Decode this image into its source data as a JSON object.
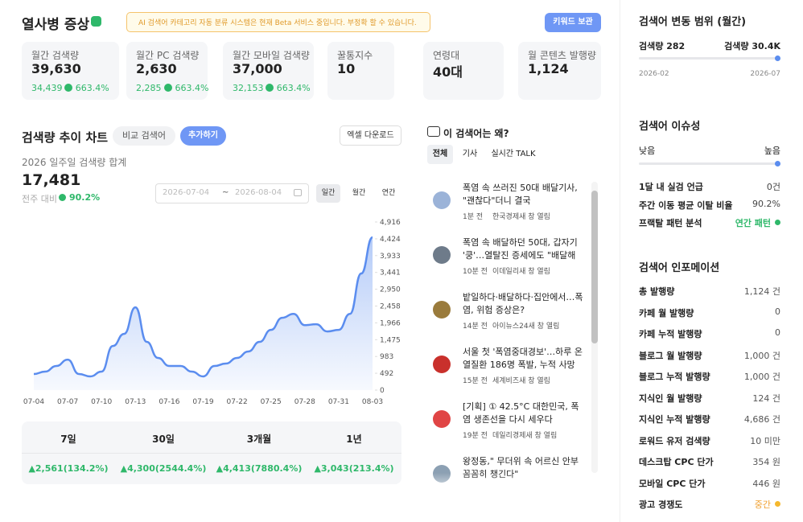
{
  "header": {
    "title": "열사병 증상",
    "notice": "AI 검색어 카테고리 자동 분류 시스템은 현재 Beta 서비스 중입니다. 부정확 할 수 있습니다.",
    "button": "키워드 보관"
  },
  "stats": [
    {
      "label": "월간 검색량",
      "value": "39,630",
      "sub": "34,439",
      "change": "663.4%"
    },
    {
      "label": "월간 PC 검색량",
      "value": "2,630",
      "sub": "2,285",
      "change": "663.4%"
    },
    {
      "label": "월간 모바일 검색량",
      "value": "37,000",
      "sub": "32,153",
      "change": "663.4%"
    },
    {
      "label": "꿀통지수",
      "value": "10"
    },
    {
      "label": "연령대",
      "value": "40대"
    },
    {
      "label": "월 콘텐츠 발행량",
      "value": "1,124"
    }
  ],
  "trend": {
    "title": "검색량 추이 차트",
    "compare_button": "비교 검색어",
    "add_button": "추가하기",
    "excel_button": "엑셀 다운로드",
    "subtitle": "2026 일주일 검색량 합계",
    "total": "17,481",
    "compare_label": "전주 대비",
    "compare_value": "90.2%",
    "date_from": "2026-07-04",
    "date_sep": "~",
    "date_to": "2026-08-04",
    "periods": [
      "일간",
      "월간",
      "연간"
    ]
  },
  "chart_data": {
    "type": "line",
    "categories": [
      "07-04",
      null,
      null,
      "07-07",
      null,
      null,
      "07-10",
      null,
      null,
      "07-13",
      null,
      null,
      "07-16",
      null,
      null,
      "07-19",
      null,
      null,
      "07-22",
      null,
      null,
      "07-25",
      null,
      null,
      "07-28",
      null,
      null,
      "07-31",
      null,
      null,
      "08-03"
    ],
    "values": [
      470,
      540,
      705,
      890,
      470,
      400,
      540,
      1290,
      1645,
      2420,
      1410,
      940,
      705,
      705,
      540,
      400,
      705,
      775,
      940,
      1130,
      1410,
      1760,
      2115,
      2230,
      1900,
      1925,
      1715,
      1760,
      2230,
      3410,
      4465
    ],
    "color": "#5b8def",
    "ylim": [
      0,
      4916
    ],
    "yticks": [
      0,
      492,
      983,
      {
        "value": 1475,
        "label": "1,475"
      },
      {
        "value": 1966,
        "label": "1,966"
      },
      {
        "value": 2458,
        "label": "2,458"
      },
      {
        "value": 2950,
        "label": "2,950"
      },
      {
        "value": 3441,
        "label": "3,441"
      },
      {
        "value": 3933,
        "label": "3,933"
      },
      {
        "value": 4424,
        "label": "4,424"
      },
      {
        "value": 4916,
        "label": "4,916"
      }
    ],
    "grid": false
  },
  "summary": {
    "headers": [
      "7일",
      "30일",
      "3개월",
      "1년"
    ],
    "values": [
      "▲2,561(134.2%)",
      "▲4,300(2544.4%)",
      "▲4,413(7880.4%)",
      "▲3,043(213.4%)"
    ]
  },
  "why": {
    "title": "이 검색어는 왜?",
    "tabs": [
      "전체",
      "기사",
      "실시간 TALK"
    ],
    "news": [
      {
        "title": "폭염 속 쓰러진 50대 배달기사, \"괜찮다\"더니 결국",
        "time": "1분 전",
        "source": "한국경제새 창 열림"
      },
      {
        "title": "폭염 속 배달하던 50대, 갑자기 '쿵'…열탈진 증세에도 \"배달해야\"",
        "time": "10분 전",
        "source": "이데일리새 창 열림"
      },
      {
        "title": "밭일하다·배달하다·집안에서…폭염, 위험 증상은?",
        "time": "14분 전",
        "source": "아이뉴스24새 창 열림"
      },
      {
        "title": "서울 첫 '폭염중대경보'…하루 온열질환 186명 폭발, 누적 사망 19명",
        "time": "15분 전",
        "source": "세계비즈새 창 열림"
      },
      {
        "title": "[기획] ① 42.5°C 대한민국, 폭염 생존선을 다시 세우다",
        "time": "19분 전",
        "source": "데일리경제새 창 열림"
      },
      {
        "title": "왕정동,\" 무더위 속 어르신 안부 꼼꼼히 챙긴다\"",
        "time": "",
        "source": ""
      }
    ]
  },
  "range": {
    "title": "검색어 변동 범위 (월간)",
    "min_label": "검색량 282",
    "max_label": "검색량 30.4K",
    "start": "2026-02",
    "end": "2026-07"
  },
  "issue": {
    "title": "검색어 이슈성",
    "low": "낮음",
    "high": "높음",
    "rows": [
      [
        "1달 내 실검 언급",
        "0건"
      ],
      [
        "주간 이동 평균 이탈 비율",
        "90.2%"
      ],
      [
        "프랙탈 패턴 분석",
        "연간 패턴"
      ]
    ]
  },
  "info": {
    "title": "검색어 인포메이션",
    "rows": [
      [
        "총 발행량",
        "1,124 건"
      ],
      [
        "카페 월 발행량",
        "0"
      ],
      [
        "카페 누적 발행량",
        "0"
      ],
      [
        "블로그 월 발행량",
        "1,000 건"
      ],
      [
        "블로그 누적 발행량",
        "1,000 건"
      ],
      [
        "지식인 월 발행량",
        "124 건"
      ],
      [
        "지식인 누적 발행량",
        "4,686 건"
      ],
      [
        "로워드 유저 검색량",
        "10 미만"
      ],
      [
        "데스크탑 CPC 단가",
        "354 원"
      ],
      [
        "모바일 CPC 단가",
        "446 원"
      ],
      [
        "광고 경쟁도",
        "중간"
      ]
    ]
  }
}
